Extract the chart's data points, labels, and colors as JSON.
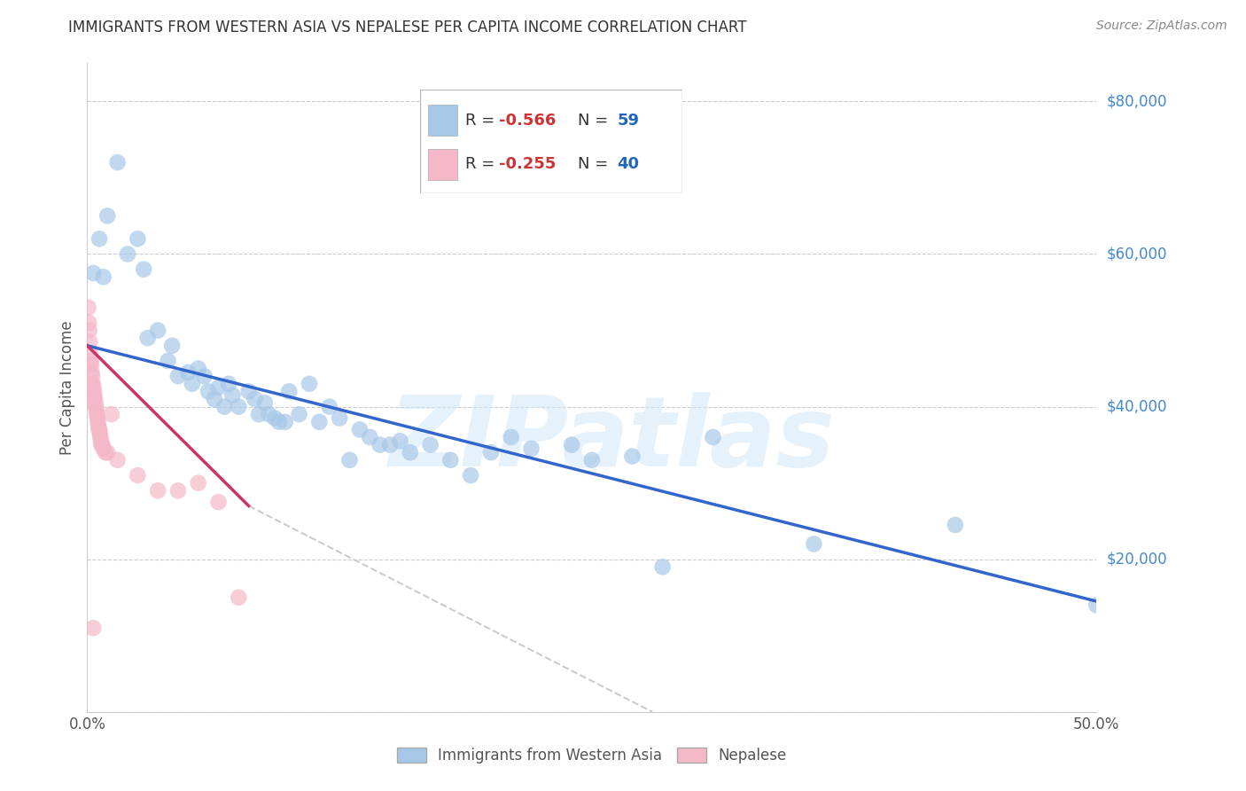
{
  "title": "IMMIGRANTS FROM WESTERN ASIA VS NEPALESE PER CAPITA INCOME CORRELATION CHART",
  "source": "Source: ZipAtlas.com",
  "ylabel": "Per Capita Income",
  "legend_label1": "Immigrants from Western Asia",
  "legend_label2": "Nepalese",
  "R1": -0.566,
  "N1": 59,
  "R2": -0.255,
  "N2": 40,
  "watermark": "ZIPatlas",
  "blue_color": "#a8c8e8",
  "pink_color": "#f4b8c8",
  "blue_line_color": "#3366cc",
  "pink_line_color": "#cc3366",
  "gray_line_color": "#cccccc",
  "blue_scatter": [
    [
      0.3,
      57500
    ],
    [
      0.6,
      62000
    ],
    [
      0.8,
      57000
    ],
    [
      1.0,
      65000
    ],
    [
      1.5,
      72000
    ],
    [
      2.0,
      60000
    ],
    [
      2.5,
      62000
    ],
    [
      2.8,
      58000
    ],
    [
      3.0,
      49000
    ],
    [
      3.5,
      50000
    ],
    [
      4.0,
      46000
    ],
    [
      4.2,
      48000
    ],
    [
      4.5,
      44000
    ],
    [
      5.0,
      44500
    ],
    [
      5.2,
      43000
    ],
    [
      5.5,
      45000
    ],
    [
      5.8,
      44000
    ],
    [
      6.0,
      42000
    ],
    [
      6.3,
      41000
    ],
    [
      6.5,
      42500
    ],
    [
      6.8,
      40000
    ],
    [
      7.0,
      43000
    ],
    [
      7.2,
      41500
    ],
    [
      7.5,
      40000
    ],
    [
      8.0,
      42000
    ],
    [
      8.3,
      41000
    ],
    [
      8.5,
      39000
    ],
    [
      8.8,
      40500
    ],
    [
      9.0,
      39000
    ],
    [
      9.3,
      38500
    ],
    [
      9.5,
      38000
    ],
    [
      9.8,
      38000
    ],
    [
      10.0,
      42000
    ],
    [
      10.5,
      39000
    ],
    [
      11.0,
      43000
    ],
    [
      11.5,
      38000
    ],
    [
      12.0,
      40000
    ],
    [
      12.5,
      38500
    ],
    [
      13.0,
      33000
    ],
    [
      13.5,
      37000
    ],
    [
      14.0,
      36000
    ],
    [
      14.5,
      35000
    ],
    [
      15.0,
      35000
    ],
    [
      15.5,
      35500
    ],
    [
      16.0,
      34000
    ],
    [
      17.0,
      35000
    ],
    [
      18.0,
      33000
    ],
    [
      19.0,
      31000
    ],
    [
      20.0,
      34000
    ],
    [
      21.0,
      36000
    ],
    [
      22.0,
      34500
    ],
    [
      24.0,
      35000
    ],
    [
      25.0,
      33000
    ],
    [
      27.0,
      33500
    ],
    [
      28.5,
      19000
    ],
    [
      31.0,
      36000
    ],
    [
      36.0,
      22000
    ],
    [
      43.0,
      24500
    ],
    [
      50.0,
      14000
    ]
  ],
  "pink_scatter": [
    [
      0.05,
      53000
    ],
    [
      0.08,
      51000
    ],
    [
      0.1,
      50000
    ],
    [
      0.12,
      48500
    ],
    [
      0.15,
      47000
    ],
    [
      0.18,
      46000
    ],
    [
      0.2,
      45500
    ],
    [
      0.22,
      44500
    ],
    [
      0.25,
      44000
    ],
    [
      0.28,
      43000
    ],
    [
      0.3,
      42500
    ],
    [
      0.33,
      42000
    ],
    [
      0.35,
      41500
    ],
    [
      0.38,
      41000
    ],
    [
      0.4,
      40500
    ],
    [
      0.43,
      40000
    ],
    [
      0.45,
      39500
    ],
    [
      0.48,
      39000
    ],
    [
      0.5,
      38500
    ],
    [
      0.53,
      38000
    ],
    [
      0.55,
      37500
    ],
    [
      0.58,
      37000
    ],
    [
      0.6,
      37000
    ],
    [
      0.63,
      36500
    ],
    [
      0.65,
      36000
    ],
    [
      0.68,
      35500
    ],
    [
      0.7,
      35000
    ],
    [
      0.75,
      35000
    ],
    [
      0.8,
      34500
    ],
    [
      0.9,
      34000
    ],
    [
      1.0,
      34000
    ],
    [
      1.2,
      39000
    ],
    [
      1.5,
      33000
    ],
    [
      2.5,
      31000
    ],
    [
      3.5,
      29000
    ],
    [
      4.5,
      29000
    ],
    [
      5.5,
      30000
    ],
    [
      6.5,
      27500
    ],
    [
      7.5,
      15000
    ],
    [
      0.3,
      11000
    ]
  ],
  "ylim": [
    0,
    85000
  ],
  "xlim_pct": [
    0,
    50
  ],
  "yticks": [
    0,
    20000,
    40000,
    60000,
    80000
  ],
  "ytick_labels": [
    "",
    "$20,000",
    "$40,000",
    "$60,000",
    "$80,000"
  ],
  "xticks": [
    0,
    10,
    20,
    30,
    40,
    50
  ],
  "xtick_labels": [
    "0.0%",
    "",
    "",
    "",
    "",
    "50.0%"
  ]
}
